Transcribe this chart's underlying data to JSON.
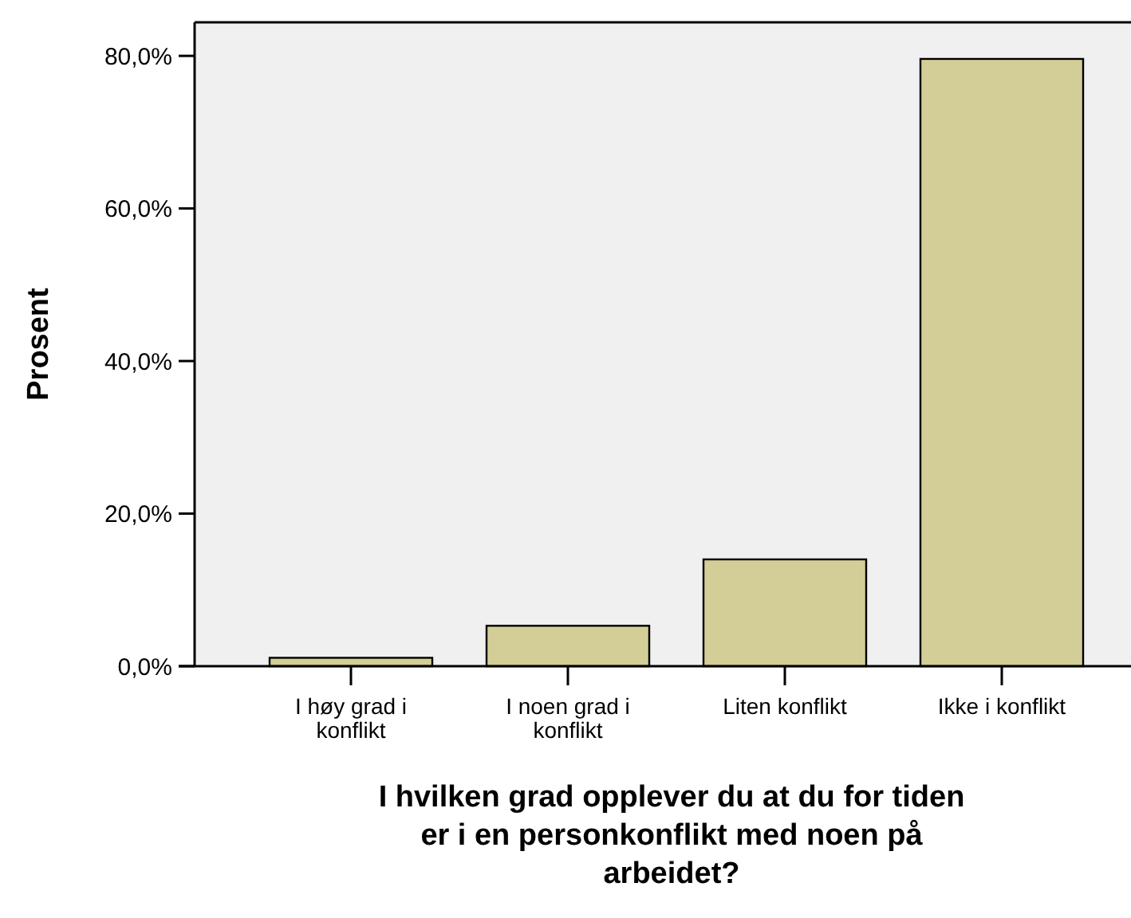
{
  "chart_data": {
    "type": "bar",
    "xlabel": "I hvilken grad opplever du at du for tiden er i en personkonflikt med noen på arbeidet?",
    "ylabel": "Prosent",
    "categories": [
      "I høy grad i konflikt",
      "I noen grad i konflikt",
      "Liten konflikt",
      "Ikke i konflikt"
    ],
    "values": [
      1.1,
      5.3,
      14.0,
      79.6
    ],
    "color": "#d3ce97",
    "ylim": [
      0,
      84.4
    ],
    "yticks": [
      {
        "value": 0,
        "label": "0,0%"
      },
      {
        "value": 20,
        "label": "20,0%"
      },
      {
        "value": 40,
        "label": "40,0%"
      },
      {
        "value": 60,
        "label": "60,0%"
      },
      {
        "value": 80,
        "label": "80,0%"
      }
    ],
    "grid": false
  }
}
